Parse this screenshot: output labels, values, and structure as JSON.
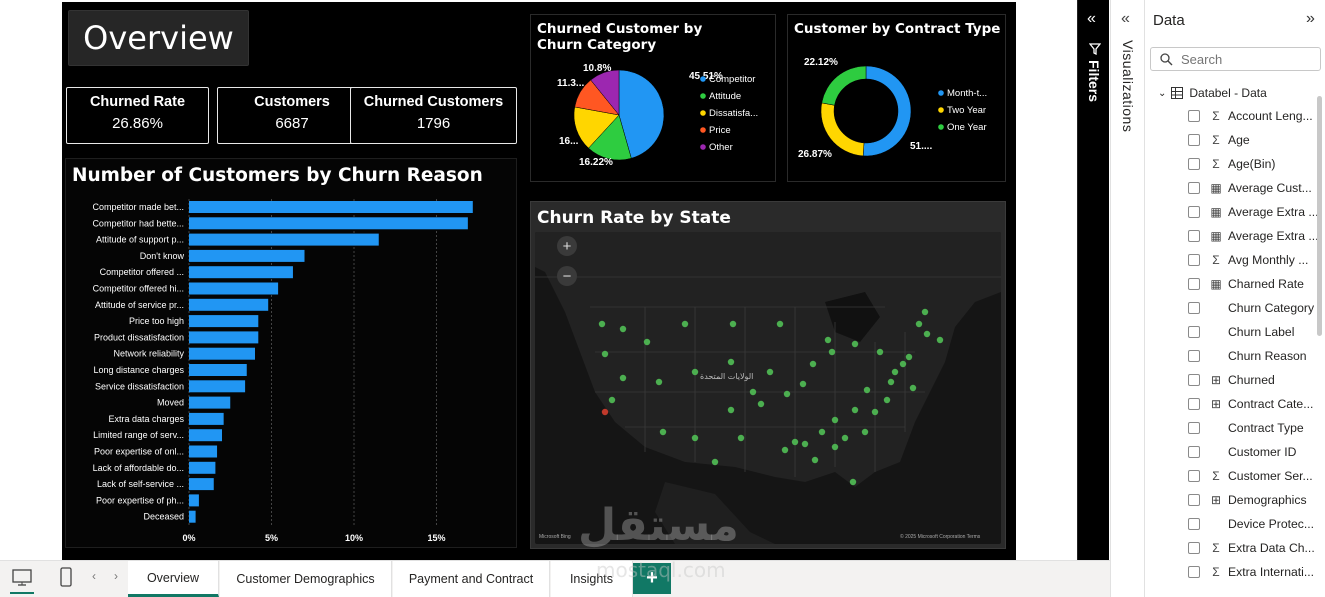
{
  "page": {
    "title": "Overview"
  },
  "kpis": [
    {
      "label": "Churned Rate",
      "value": "26.86%"
    },
    {
      "label": "Customers",
      "value": "6687"
    },
    {
      "label": "Churned Customers",
      "value": "1796"
    }
  ],
  "bar_chart": {
    "title": "Number of Customers by Churn Reason"
  },
  "pie_chart": {
    "title": "Churned Customer by Churn Category",
    "labels_shown": [
      "45.51%",
      "16.22%",
      "16...",
      "11.3...",
      "10.8%"
    ]
  },
  "donut_chart": {
    "title": "Customer by Contract Type",
    "labels_shown": [
      "22.12%",
      "26.87%",
      "51...."
    ]
  },
  "map": {
    "title": "Churn Rate by State",
    "zoom_in": "+",
    "zoom_out": "−",
    "map_label": "الولايات المتحدة",
    "attribution_left": "Microsoft Bing",
    "attribution_right": "© 2025 Microsoft Corporation Terms",
    "colors": {
      "point": "#4caf50",
      "point_alert": "#c0392b",
      "land": "#1e1e1e",
      "water": "#0d0d0d"
    }
  },
  "chart_data": [
    {
      "type": "bar",
      "orientation": "horizontal",
      "title": "Number of Customers by Churn Reason",
      "categories": [
        "Competitor made bet...",
        "Competitor had bette...",
        "Attitude of support p...",
        "Don't know",
        "Competitor offered ...",
        "Competitor offered hi...",
        "Attitude of service pr...",
        "Price too high",
        "Product dissatisfaction",
        "Network reliability",
        "Long distance charges",
        "Service dissatisfaction",
        "Moved",
        "Extra data charges",
        "Limited range of serv...",
        "Poor expertise of onl...",
        "Lack of affordable do...",
        "Lack of self-service ...",
        "Poor expertise of ph...",
        "Deceased"
      ],
      "values": [
        17.2,
        16.9,
        11.5,
        7.0,
        6.3,
        5.4,
        4.8,
        4.2,
        4.2,
        4.0,
        3.5,
        3.4,
        2.5,
        2.1,
        2.0,
        1.7,
        1.6,
        1.5,
        0.6,
        0.4
      ],
      "xticks": [
        "0%",
        "5%",
        "10%",
        "15%"
      ],
      "xlim": [
        0,
        18
      ],
      "grid": true,
      "color": "#2196f3"
    },
    {
      "type": "pie",
      "title": "Churned Customer by Churn Category",
      "legend_position": "right",
      "slices": [
        {
          "name": "Competitor",
          "value": 45.51,
          "label": "45.51%",
          "color": "#2196f3"
        },
        {
          "name": "Attitude",
          "value": 16.22,
          "label": "16.22%",
          "color": "#2ecc40"
        },
        {
          "name": "Dissatisfa...",
          "value": 16.0,
          "label": "16...",
          "color": "#ffd600"
        },
        {
          "name": "Price",
          "value": 11.3,
          "label": "11.3...",
          "color": "#ff5722"
        },
        {
          "name": "Other",
          "value": 10.8,
          "label": "10.8%",
          "color": "#9c27b0"
        }
      ]
    },
    {
      "type": "pie",
      "subtype": "donut",
      "title": "Customer by Contract Type",
      "legend_position": "right",
      "slices": [
        {
          "name": "Month-t...",
          "value": 51.0,
          "label": "51....",
          "color": "#2196f3"
        },
        {
          "name": "Two Year",
          "value": 26.87,
          "label": "26.87%",
          "color": "#ffd600"
        },
        {
          "name": "One Year",
          "value": 22.12,
          "label": "22.12%",
          "color": "#2ecc40"
        }
      ]
    }
  ],
  "filters_pane": {
    "label": "Filters"
  },
  "visualizations_pane": {
    "label": "Visualizations"
  },
  "data_pane": {
    "title": "Data",
    "search_placeholder": "Search",
    "table_name": "Databel - Data",
    "fields": [
      {
        "name": "Account Leng...",
        "icon": "sigma"
      },
      {
        "name": "Age",
        "icon": "sigma"
      },
      {
        "name": "Age(Bin)",
        "icon": "sigma"
      },
      {
        "name": "Average Cust...",
        "icon": "calc"
      },
      {
        "name": "Average Extra ...",
        "icon": "calc"
      },
      {
        "name": "Average Extra ...",
        "icon": "calc"
      },
      {
        "name": "Avg Monthly ...",
        "icon": "sigma"
      },
      {
        "name": "Charned Rate",
        "icon": "calc"
      },
      {
        "name": "Churn Category",
        "icon": "none"
      },
      {
        "name": "Churn Label",
        "icon": "none"
      },
      {
        "name": "Churn Reason",
        "icon": "none"
      },
      {
        "name": "Churned",
        "icon": "hier"
      },
      {
        "name": "Contract Cate...",
        "icon": "hier"
      },
      {
        "name": "Contract Type",
        "icon": "none"
      },
      {
        "name": "Customer ID",
        "icon": "none"
      },
      {
        "name": "Customer Ser...",
        "icon": "sigma"
      },
      {
        "name": "Demographics",
        "icon": "hier"
      },
      {
        "name": "Device Protec...",
        "icon": "none"
      },
      {
        "name": "Extra Data Ch...",
        "icon": "sigma"
      },
      {
        "name": "Extra Internati...",
        "icon": "sigma"
      }
    ]
  },
  "tabs": [
    {
      "label": "Overview",
      "active": true
    },
    {
      "label": "Customer Demographics",
      "active": false
    },
    {
      "label": "Payment and Contract",
      "active": false
    },
    {
      "label": "Insights",
      "active": false
    }
  ],
  "add_tab_label": "+",
  "watermark": {
    "text_ar": "مستقل",
    "text_en": "mostaql.com"
  }
}
